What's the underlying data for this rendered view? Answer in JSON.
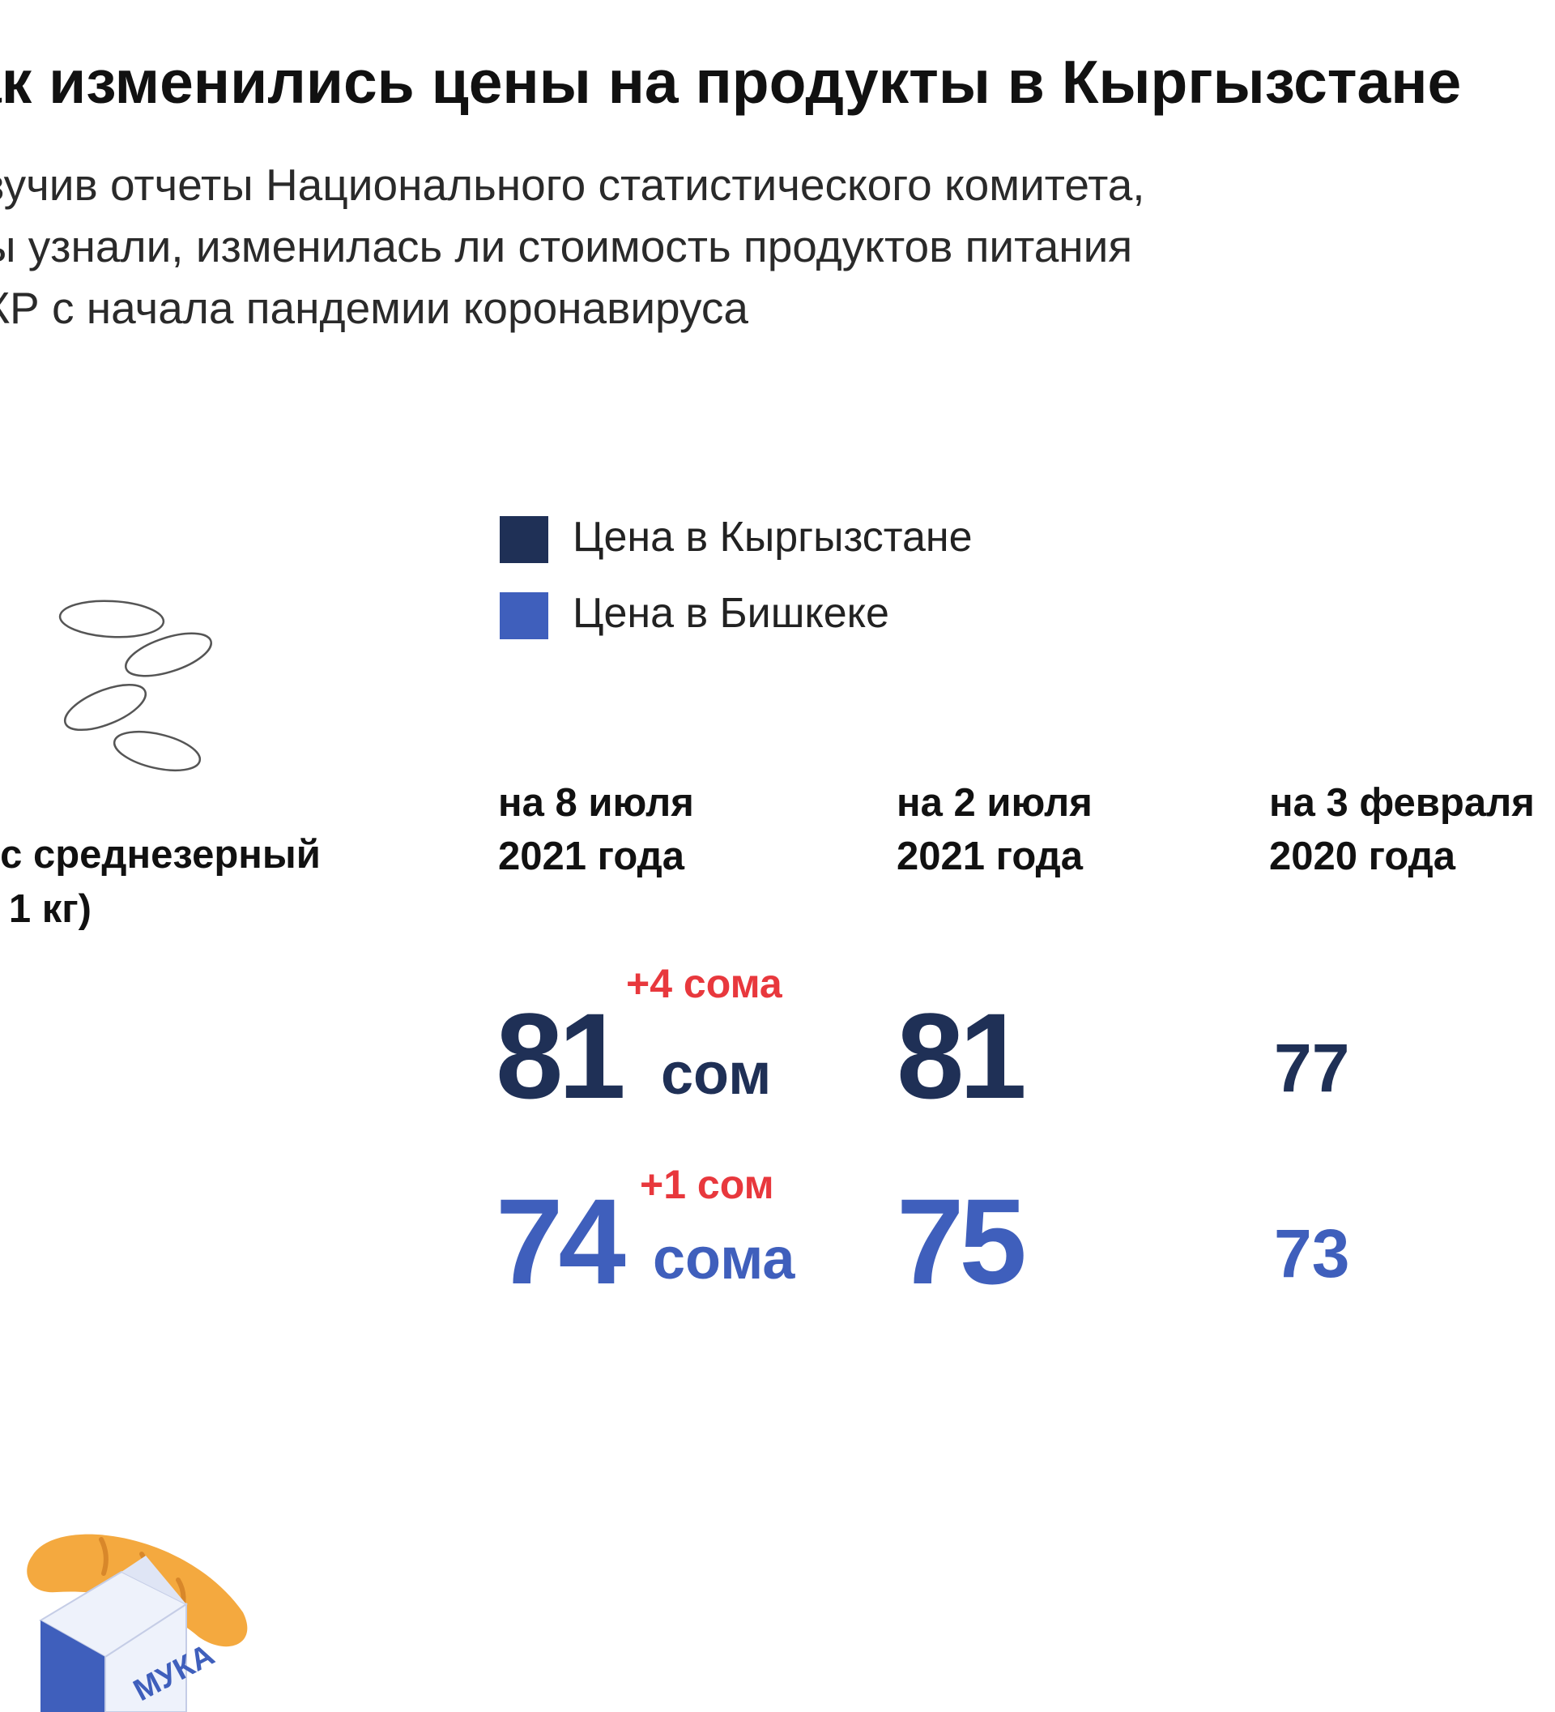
{
  "title": "ак изменились цены на продукты в Кыргызстане",
  "subtitle_lines": [
    "зучив отчеты Национального статистического комитета,",
    "ы узнали, изменилась ли стоимость продуктов питания",
    "КР с начала пандемии коронавируса"
  ],
  "legend": {
    "kyrgyzstan": {
      "label": "Цена в Кыргызстане",
      "color": "#1f3056"
    },
    "bishkek": {
      "label": "Цена в Бишкеке",
      "color": "#3f5fbc"
    }
  },
  "product": {
    "lines": [
      "ис среднезерный",
      "а 1 кг)"
    ],
    "icon": "rice-grains-icon"
  },
  "columns": [
    {
      "line1": "на 8 июля",
      "line2": "2021 года"
    },
    {
      "line1": "на 2 июля",
      "line2": "2021 года"
    },
    {
      "line1": "на 3 февраля",
      "line2": "2020 года"
    }
  ],
  "prices": {
    "kyrgyzstan": {
      "current_value": "81",
      "current_unit": "сом",
      "change": "+4 сома",
      "values": [
        "81",
        "77"
      ]
    },
    "bishkek": {
      "current_value": "74",
      "current_unit": "сома",
      "change": "+1 сом",
      "values": [
        "75",
        "73"
      ]
    }
  },
  "colors": {
    "change": "#e8383d",
    "bread": "#f4a93f",
    "flour_box_blue": "#3f5fbc"
  },
  "flour_icon": {
    "label": "МУКА",
    "icon": "flour-bread-icon"
  }
}
